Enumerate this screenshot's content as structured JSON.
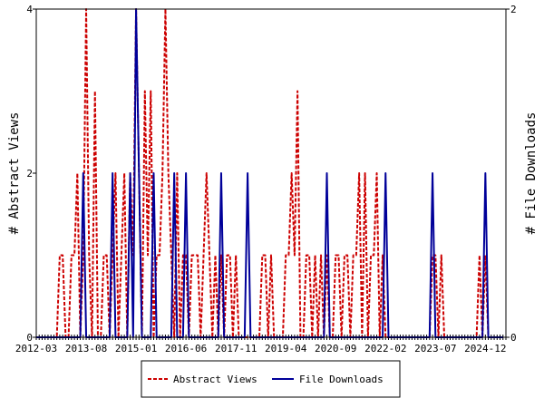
{
  "chart_data": {
    "type": "line",
    "title": "",
    "x_tick_labels": [
      "2012-03",
      "2013-08",
      "2015-01",
      "2016-06",
      "2017-11",
      "2019-04",
      "2020-09",
      "2022-02",
      "2023-07",
      "2024-12"
    ],
    "left_axis": {
      "label": "# Abstract Views",
      "ylim": [
        0,
        4
      ],
      "ticks": [
        "0",
        "2",
        "4"
      ]
    },
    "right_axis": {
      "label": "# File Downloads",
      "ylim": [
        0,
        2
      ],
      "ticks": [
        "0",
        "2"
      ]
    },
    "legend": {
      "placement": "bottom-center",
      "entries": [
        "Abstract Views",
        "File Downloads"
      ]
    },
    "series": [
      {
        "name": "Abstract Views",
        "axis": "left",
        "color": "#cc0000",
        "style": "dashed",
        "points": [
          [
            "2012-03",
            0
          ],
          [
            "2012-10",
            0
          ],
          [
            "2012-11",
            1
          ],
          [
            "2012-12",
            1
          ],
          [
            "2013-01",
            0
          ],
          [
            "2013-02",
            0
          ],
          [
            "2013-03",
            1
          ],
          [
            "2013-04",
            1
          ],
          [
            "2013-05",
            2
          ],
          [
            "2013-06",
            0
          ],
          [
            "2013-07",
            1
          ],
          [
            "2013-08",
            4
          ],
          [
            "2013-09",
            1
          ],
          [
            "2013-10",
            0
          ],
          [
            "2013-11",
            3
          ],
          [
            "2013-12",
            0
          ],
          [
            "2014-01",
            0
          ],
          [
            "2014-02",
            1
          ],
          [
            "2014-03",
            1
          ],
          [
            "2014-04",
            0
          ],
          [
            "2014-05",
            1
          ],
          [
            "2014-06",
            2
          ],
          [
            "2014-07",
            0
          ],
          [
            "2014-08",
            1
          ],
          [
            "2014-09",
            2
          ],
          [
            "2014-10",
            0
          ],
          [
            "2014-11",
            2
          ],
          [
            "2014-12",
            1
          ],
          [
            "2015-01",
            4
          ],
          [
            "2015-02",
            2
          ],
          [
            "2015-03",
            0
          ],
          [
            "2015-04",
            3
          ],
          [
            "2015-05",
            1
          ],
          [
            "2015-06",
            3
          ],
          [
            "2015-07",
            0
          ],
          [
            "2015-08",
            1
          ],
          [
            "2015-09",
            1
          ],
          [
            "2015-10",
            2
          ],
          [
            "2015-11",
            4
          ],
          [
            "2015-12",
            2
          ],
          [
            "2016-01",
            1
          ],
          [
            "2016-02",
            0
          ],
          [
            "2016-03",
            2
          ],
          [
            "2016-04",
            0
          ],
          [
            "2016-05",
            1
          ],
          [
            "2016-06",
            1
          ],
          [
            "2016-07",
            0
          ],
          [
            "2016-08",
            1
          ],
          [
            "2016-09",
            1
          ],
          [
            "2016-10",
            1
          ],
          [
            "2016-11",
            0
          ],
          [
            "2016-12",
            1
          ],
          [
            "2017-01",
            2
          ],
          [
            "2017-02",
            1
          ],
          [
            "2017-03",
            0
          ],
          [
            "2017-04",
            1
          ],
          [
            "2017-05",
            0
          ],
          [
            "2017-06",
            1
          ],
          [
            "2017-07",
            0
          ],
          [
            "2017-08",
            1
          ],
          [
            "2017-09",
            1
          ],
          [
            "2017-10",
            0
          ],
          [
            "2017-11",
            1
          ],
          [
            "2017-12",
            0
          ],
          [
            "2018-01",
            0
          ],
          [
            "2018-07",
            0
          ],
          [
            "2018-08",
            1
          ],
          [
            "2018-09",
            1
          ],
          [
            "2018-10",
            0
          ],
          [
            "2018-11",
            1
          ],
          [
            "2018-12",
            0
          ],
          [
            "2019-01",
            0
          ],
          [
            "2019-03",
            0
          ],
          [
            "2019-04",
            1
          ],
          [
            "2019-05",
            1
          ],
          [
            "2019-06",
            2
          ],
          [
            "2019-07",
            1
          ],
          [
            "2019-08",
            3
          ],
          [
            "2019-09",
            0
          ],
          [
            "2019-10",
            0
          ],
          [
            "2019-11",
            1
          ],
          [
            "2019-12",
            1
          ],
          [
            "2020-01",
            0
          ],
          [
            "2020-02",
            1
          ],
          [
            "2020-03",
            0
          ],
          [
            "2020-04",
            1
          ],
          [
            "2020-05",
            0
          ],
          [
            "2020-06",
            1
          ],
          [
            "2020-07",
            0
          ],
          [
            "2020-08",
            0
          ],
          [
            "2020-09",
            1
          ],
          [
            "2020-10",
            1
          ],
          [
            "2020-11",
            0
          ],
          [
            "2020-12",
            1
          ],
          [
            "2021-01",
            1
          ],
          [
            "2021-02",
            0
          ],
          [
            "2021-03",
            1
          ],
          [
            "2021-04",
            1
          ],
          [
            "2021-05",
            2
          ],
          [
            "2021-06",
            0
          ],
          [
            "2021-07",
            2
          ],
          [
            "2021-08",
            0
          ],
          [
            "2021-09",
            1
          ],
          [
            "2021-10",
            1
          ],
          [
            "2021-11",
            2
          ],
          [
            "2021-12",
            0
          ],
          [
            "2022-01",
            1
          ],
          [
            "2022-02",
            0
          ],
          [
            "2022-03",
            0
          ],
          [
            "2023-05",
            0
          ],
          [
            "2023-06",
            1
          ],
          [
            "2023-07",
            1
          ],
          [
            "2023-08",
            0
          ],
          [
            "2023-09",
            1
          ],
          [
            "2023-10",
            0
          ],
          [
            "2023-11",
            0
          ],
          [
            "2024-09",
            0
          ],
          [
            "2024-10",
            1
          ],
          [
            "2024-11",
            0
          ],
          [
            "2024-12",
            1
          ],
          [
            "2025-01",
            0
          ],
          [
            "2025-06",
            0
          ]
        ]
      },
      {
        "name": "File Downloads",
        "axis": "right",
        "color": "#000099",
        "style": "solid",
        "points": [
          [
            "2012-03",
            0
          ],
          [
            "2013-06",
            0
          ],
          [
            "2013-07",
            1
          ],
          [
            "2013-08",
            0
          ],
          [
            "2013-09",
            0
          ],
          [
            "2014-04",
            0
          ],
          [
            "2014-05",
            1
          ],
          [
            "2014-06",
            0
          ],
          [
            "2014-07",
            0
          ],
          [
            "2014-10",
            0
          ],
          [
            "2014-11",
            1
          ],
          [
            "2014-12",
            0
          ],
          [
            "2015-01",
            2
          ],
          [
            "2015-02",
            1
          ],
          [
            "2015-03",
            0
          ],
          [
            "2015-04",
            0
          ],
          [
            "2015-06",
            0
          ],
          [
            "2015-07",
            1
          ],
          [
            "2015-08",
            0
          ],
          [
            "2015-09",
            0
          ],
          [
            "2016-01",
            0
          ],
          [
            "2016-02",
            1
          ],
          [
            "2016-03",
            0
          ],
          [
            "2016-04",
            0
          ],
          [
            "2016-05",
            0
          ],
          [
            "2016-06",
            1
          ],
          [
            "2016-07",
            0
          ],
          [
            "2016-08",
            0
          ],
          [
            "2017-05",
            0
          ],
          [
            "2017-06",
            1
          ],
          [
            "2017-07",
            0
          ],
          [
            "2017-08",
            0
          ],
          [
            "2018-02",
            0
          ],
          [
            "2018-03",
            1
          ],
          [
            "2018-04",
            0
          ],
          [
            "2018-05",
            0
          ],
          [
            "2020-05",
            0
          ],
          [
            "2020-06",
            1
          ],
          [
            "2020-07",
            0
          ],
          [
            "2020-08",
            0
          ],
          [
            "2022-01",
            0
          ],
          [
            "2022-02",
            1
          ],
          [
            "2022-03",
            0
          ],
          [
            "2022-04",
            0
          ],
          [
            "2023-05",
            0
          ],
          [
            "2023-06",
            1
          ],
          [
            "2023-07",
            0
          ],
          [
            "2023-08",
            0
          ],
          [
            "2024-11",
            0
          ],
          [
            "2024-12",
            1
          ],
          [
            "2025-01",
            0
          ],
          [
            "2025-06",
            0
          ]
        ]
      }
    ]
  }
}
